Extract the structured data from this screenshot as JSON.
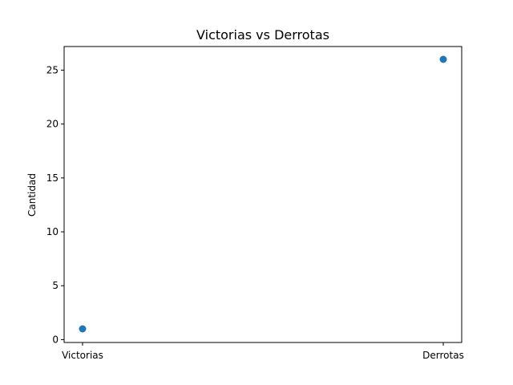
{
  "chart_data": {
    "type": "scatter",
    "title": "Victorias vs Derrotas",
    "xlabel": "",
    "ylabel": "Cantidad",
    "categories": [
      "Victorias",
      "Derrotas"
    ],
    "values": [
      1,
      26
    ],
    "ylim": [
      0,
      27
    ],
    "yticks": [
      0,
      5,
      10,
      15,
      20,
      25
    ],
    "grid": false,
    "legend": "none",
    "colors": {
      "point": "#1f77b4",
      "axis": "#000000",
      "background": "#ffffff"
    }
  }
}
